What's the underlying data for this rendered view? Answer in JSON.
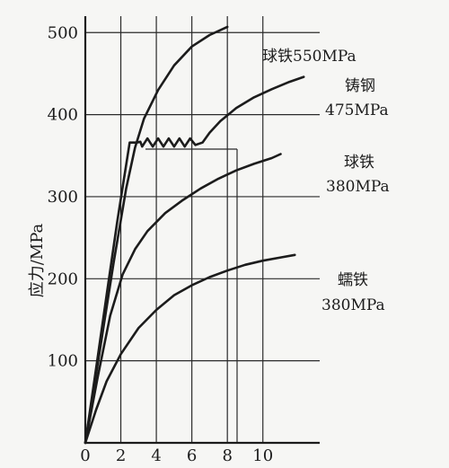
{
  "chart_data": {
    "type": "line",
    "title": "",
    "xlabel": "",
    "ylabel": "应力/MPa",
    "xlim": [
      0,
      13.2
    ],
    "ylim": [
      0,
      520
    ],
    "x_ticks": [
      0,
      2,
      4,
      6,
      8,
      10
    ],
    "y_ticks": [
      100,
      200,
      300,
      400,
      500
    ],
    "grid": true,
    "series": [
      {
        "name_lines": [
          "球铁550MPa"
        ],
        "points": [
          [
            0,
            0
          ],
          [
            0.8,
            110
          ],
          [
            1.6,
            220
          ],
          [
            2.3,
            310
          ],
          [
            2.8,
            360
          ],
          [
            3.3,
            395
          ],
          [
            4.1,
            430
          ],
          [
            5,
            460
          ],
          [
            6,
            483
          ],
          [
            7,
            497
          ],
          [
            8,
            507
          ]
        ]
      },
      {
        "name_lines": [
          "铸钢",
          "475MPa"
        ],
        "points": [
          [
            0,
            0
          ],
          [
            0.6,
            90
          ],
          [
            1.2,
            180
          ],
          [
            1.8,
            270
          ],
          [
            2.5,
            366
          ],
          [
            2.9,
            366
          ],
          [
            3.1,
            367
          ],
          [
            3.2,
            361
          ],
          [
            3.5,
            371
          ],
          [
            3.8,
            361
          ],
          [
            4.1,
            371
          ],
          [
            4.4,
            361
          ],
          [
            4.7,
            371
          ],
          [
            5,
            361
          ],
          [
            5.3,
            371
          ],
          [
            5.6,
            361
          ],
          [
            5.9,
            371
          ],
          [
            6.2,
            363
          ],
          [
            6.6,
            366
          ],
          [
            7,
            378
          ],
          [
            7.6,
            392
          ],
          [
            8.5,
            408
          ],
          [
            9.5,
            421
          ],
          [
            10.5,
            431
          ],
          [
            11.5,
            440
          ],
          [
            12.3,
            446
          ]
        ]
      },
      {
        "name_lines": [
          "球铁",
          "380MPa"
        ],
        "points": [
          [
            0,
            0
          ],
          [
            0.7,
            80
          ],
          [
            1.4,
            155
          ],
          [
            2.1,
            205
          ],
          [
            2.8,
            236
          ],
          [
            3.5,
            258
          ],
          [
            4.5,
            280
          ],
          [
            5.5,
            296
          ],
          [
            6.5,
            310
          ],
          [
            7.5,
            322
          ],
          [
            8.5,
            332
          ],
          [
            9.5,
            340
          ],
          [
            10.5,
            347
          ],
          [
            11,
            352
          ]
        ]
      },
      {
        "name_lines": [
          "蠕铁",
          "380MPa"
        ],
        "points": [
          [
            0,
            0
          ],
          [
            0.6,
            40
          ],
          [
            1.2,
            75
          ],
          [
            2,
            108
          ],
          [
            3,
            140
          ],
          [
            4,
            162
          ],
          [
            5,
            180
          ],
          [
            6,
            192
          ],
          [
            7,
            202
          ],
          [
            8,
            210
          ],
          [
            9,
            217
          ],
          [
            10,
            222
          ],
          [
            11,
            226
          ],
          [
            11.8,
            229
          ]
        ]
      }
    ]
  }
}
